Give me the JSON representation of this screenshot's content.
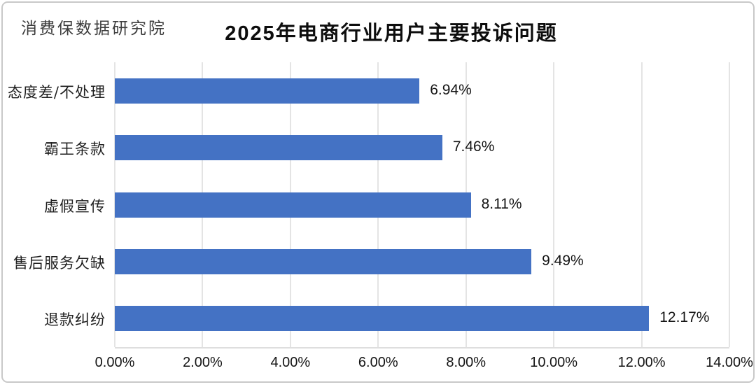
{
  "header": {
    "source": "消费保数据研究院"
  },
  "chart_data": {
    "type": "bar",
    "orientation": "horizontal",
    "title": "2025年电商行业用户主要投诉问题",
    "categories": [
      "态度差/不处理",
      "霸王条款",
      "虚假宣传",
      "售后服务欠缺",
      "退款纠纷"
    ],
    "values": [
      6.94,
      7.46,
      8.11,
      9.49,
      12.17
    ],
    "value_labels": [
      "6.94%",
      "7.46%",
      "8.11%",
      "9.49%",
      "12.17%"
    ],
    "xlabel": "",
    "ylabel": "",
    "xlim": [
      0,
      14
    ],
    "x_ticks": [
      0,
      2,
      4,
      6,
      8,
      10,
      12,
      14
    ],
    "x_tick_labels": [
      "0.00%",
      "2.00%",
      "4.00%",
      "6.00%",
      "8.00%",
      "10.00%",
      "12.00%",
      "14.00%"
    ],
    "grid": "vertical-only",
    "legend": "none",
    "bar_color": "#4472C4",
    "gridline_color": "#E4E4E4",
    "text_color": "#141414"
  }
}
